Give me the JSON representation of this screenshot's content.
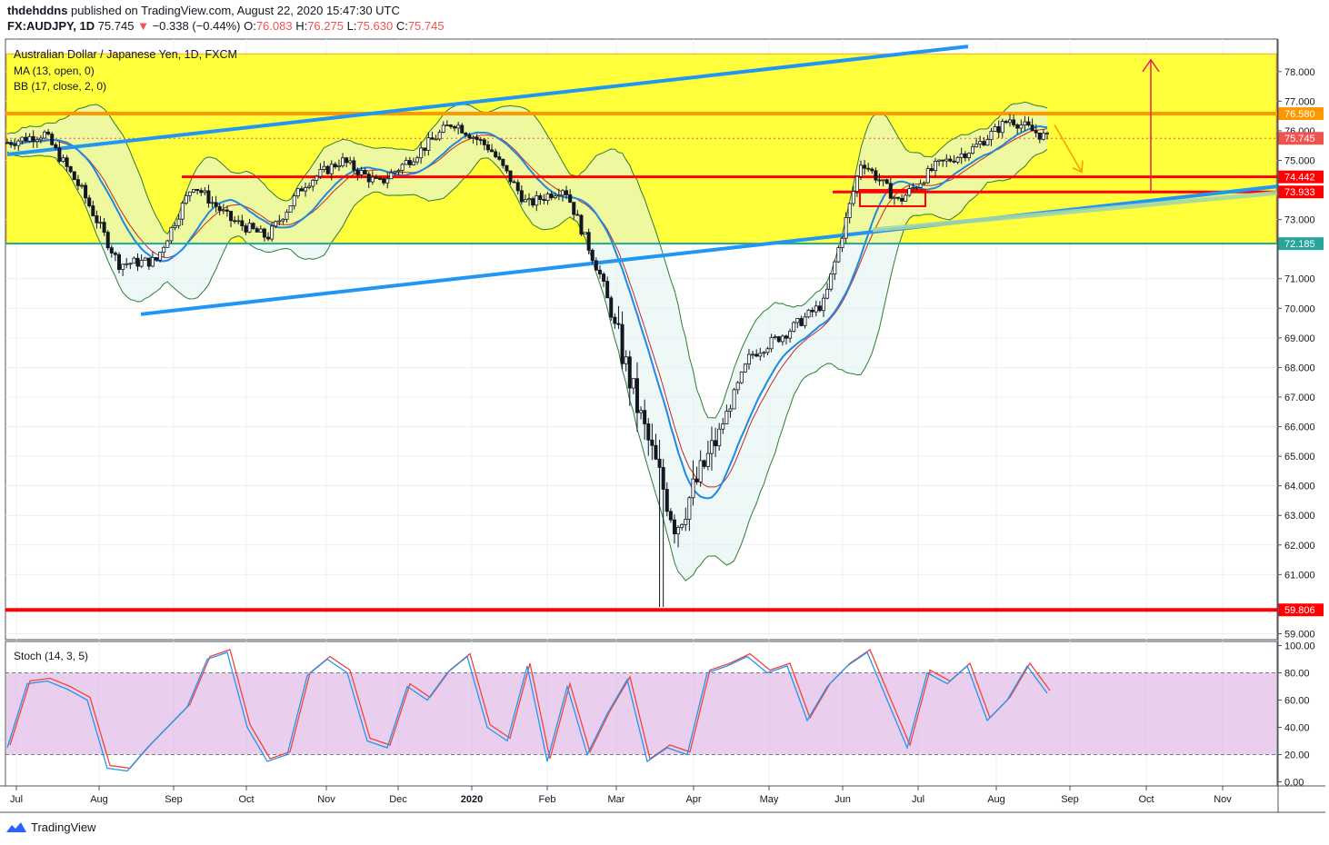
{
  "header": {
    "author": "thdehddns",
    "published": " published on TradingView.com, August 22, 2020 15:47:30 UTC",
    "symbol": "FX:AUDJPY, 1D",
    "last": "75.745",
    "change_arrow": "▼",
    "change": "−0.338 (−0.44%)",
    "o_label": "O:",
    "o_value": "76.083",
    "h_label": "H:",
    "h_value": "76.275",
    "l_label": "L:",
    "l_value": "75.630",
    "c_label": "C:",
    "c_value": "75.745"
  },
  "legend": {
    "title": "Australian Dollar / Japanese Yen, 1D, FXCM",
    "ma": "MA (13, open, 0)",
    "bb": "BB (17, close, 2, 0)",
    "stoch": "Stoch (14, 3, 5)"
  },
  "footer": {
    "brand": "TradingView"
  },
  "colors": {
    "zone": "#ffff3b",
    "up": "#ffffff",
    "down": "#131722",
    "ma": "#1e88e5",
    "bb": "#2e7d32",
    "bb_fill": "#e0f2f1",
    "resistance": "#ff0000",
    "orange_line": "#ff9800",
    "channel": "#2196f3",
    "stoch_k": "#2196f3",
    "stoch_d": "#f44336",
    "stoch_bg": "#e1bee7"
  },
  "chart_data": [
    {
      "type": "candlestick",
      "x_ticks": [
        "Jul",
        "Aug",
        "Sep",
        "Oct",
        "Nov",
        "Dec",
        "2020",
        "Feb",
        "Mar",
        "Apr",
        "May",
        "Jun",
        "Jul",
        "Aug",
        "Sep",
        "Oct",
        "Nov"
      ],
      "y_ticks": [
        "78.000",
        "77.000",
        "76.000",
        "75.000",
        "73.000",
        "71.000",
        "70.000",
        "69.000",
        "68.000",
        "67.000",
        "66.000",
        "65.000",
        "64.000",
        "63.000",
        "62.000",
        "61.000",
        "59.000"
      ],
      "ylim": [
        58.8,
        79.1
      ],
      "price_tags": [
        {
          "label": "76.580",
          "value": 76.58,
          "color": "#ff9800"
        },
        {
          "label": "75.745",
          "value": 75.745,
          "color": "#ef5350"
        },
        {
          "label": "74.442",
          "value": 74.442,
          "color": "#ff0000"
        },
        {
          "label": "73.933",
          "value": 73.933,
          "color": "#ff0000"
        },
        {
          "label": "72.185",
          "value": 72.185,
          "color": "#26a69a"
        },
        {
          "label": "59.806",
          "value": 59.806,
          "color": "#ff0000"
        }
      ],
      "zone": {
        "from": 72.2,
        "to": 78.6
      },
      "horizontal_lines": [
        {
          "value": 76.58,
          "color": "#ff9800"
        },
        {
          "value": 74.442,
          "color": "#ff0000"
        },
        {
          "value": 73.933,
          "color": "#ff0000"
        },
        {
          "value": 59.806,
          "color": "#ff0000"
        }
      ],
      "monthly_path": [
        {
          "month": "Jul",
          "value": 75.6
        },
        {
          "month": "Jul",
          "value": 75.9
        },
        {
          "month": "Aug",
          "value": 74.0
        },
        {
          "month": "Aug",
          "value": 71.5
        },
        {
          "month": "Sep",
          "value": 71.6
        },
        {
          "month": "Sep",
          "value": 74.2
        },
        {
          "month": "Oct",
          "value": 73.0
        },
        {
          "month": "Oct",
          "value": 72.4
        },
        {
          "month": "Nov",
          "value": 74.2
        },
        {
          "month": "Nov",
          "value": 75.0
        },
        {
          "month": "Dec",
          "value": 74.2
        },
        {
          "month": "Dec",
          "value": 75.2
        },
        {
          "month": "2020",
          "value": 76.3
        },
        {
          "month": "2020",
          "value": 75.4
        },
        {
          "month": "Feb",
          "value": 73.5
        },
        {
          "month": "Feb",
          "value": 74.1
        },
        {
          "month": "Mar",
          "value": 71.0
        },
        {
          "month": "Mar",
          "value": 66.5
        },
        {
          "month": "Mar",
          "value": 62.6
        },
        {
          "month": "Apr",
          "value": 65.3
        },
        {
          "month": "Apr",
          "value": 68.4
        },
        {
          "month": "May",
          "value": 69.2
        },
        {
          "month": "May",
          "value": 70.2
        },
        {
          "month": "Jun",
          "value": 75.0
        },
        {
          "month": "Jun",
          "value": 73.6
        },
        {
          "month": "Jul",
          "value": 74.8
        },
        {
          "month": "Jul",
          "value": 75.4
        },
        {
          "month": "Aug",
          "value": 76.4
        },
        {
          "month": "Aug",
          "value": 75.745
        }
      ]
    },
    {
      "type": "line",
      "title": "Stoch (14, 3, 5)",
      "y_ticks": [
        "100.00",
        "80.00",
        "60.00",
        "40.00",
        "20.00",
        "0.00"
      ],
      "ylim": [
        -3,
        103
      ],
      "bands": [
        20,
        80
      ],
      "series": [
        {
          "color": "#2196f3",
          "values": [
            25,
            72,
            74,
            68,
            60,
            10,
            8,
            25,
            40,
            55,
            90,
            95,
            40,
            15,
            20,
            78,
            90,
            80,
            30,
            25,
            70,
            60,
            80,
            92,
            40,
            30,
            85,
            15,
            70,
            20,
            50,
            75,
            15,
            25,
            20,
            80,
            85,
            92,
            80,
            85,
            45,
            70,
            85,
            95,
            60,
            25,
            80,
            72,
            85,
            45,
            60,
            85,
            65
          ]
        }
      ]
    }
  ]
}
